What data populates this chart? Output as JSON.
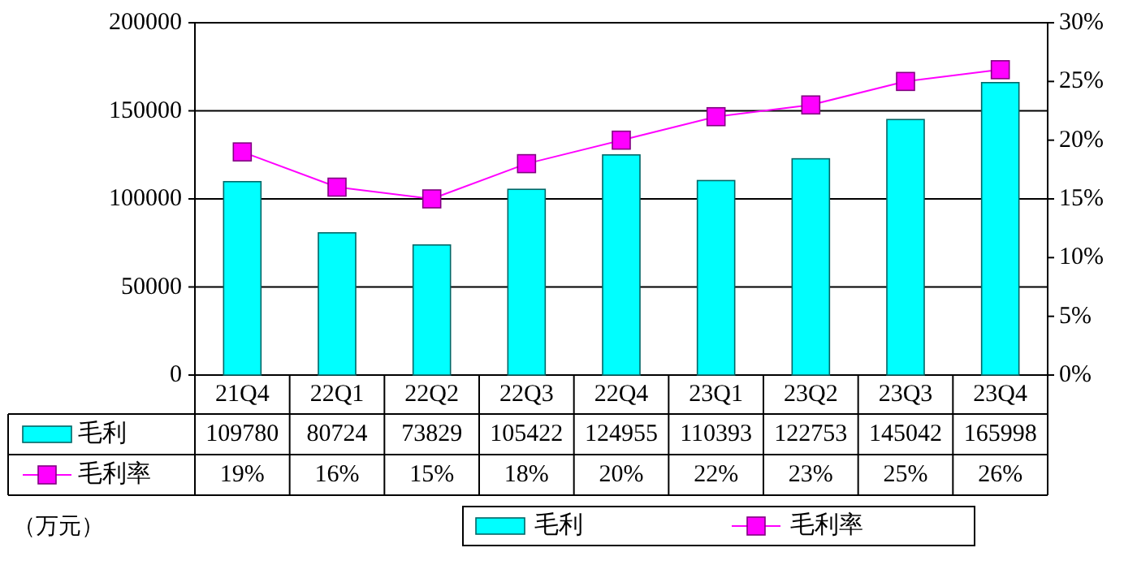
{
  "chart_data": {
    "type": "bar",
    "categories": [
      "21Q4",
      "22Q1",
      "22Q2",
      "22Q3",
      "22Q4",
      "23Q1",
      "23Q2",
      "23Q3",
      "23Q4"
    ],
    "series": [
      {
        "name": "毛利",
        "color": "#00ffff",
        "values": [
          109780,
          80724,
          73829,
          105422,
          124955,
          110393,
          122753,
          145042,
          165998
        ]
      },
      {
        "name": "毛利率",
        "type": "line",
        "axis": "y2",
        "color": "#ff00ff",
        "marker": "square",
        "values": [
          19,
          16,
          15,
          18,
          20,
          22,
          23,
          25,
          26
        ],
        "value_labels": [
          "19%",
          "16%",
          "15%",
          "18%",
          "20%",
          "22%",
          "23%",
          "25%",
          "26%"
        ]
      }
    ],
    "ylim": [
      0,
      200000
    ],
    "yticks": [
      0,
      50000,
      100000,
      150000,
      200000
    ],
    "y2lim": [
      0,
      30
    ],
    "y2ticks": [
      {
        "value": 0,
        "label": "0%"
      },
      {
        "value": 5,
        "label": "5%"
      },
      {
        "value": 10,
        "label": "10%"
      },
      {
        "value": 15,
        "label": "15%"
      },
      {
        "value": 20,
        "label": "20%"
      },
      {
        "value": 25,
        "label": "25%"
      },
      {
        "value": 30,
        "label": "30%"
      }
    ],
    "grid": "y",
    "legend": "bottom",
    "data_labels": true,
    "annotations": [
      "（万元）"
    ]
  }
}
